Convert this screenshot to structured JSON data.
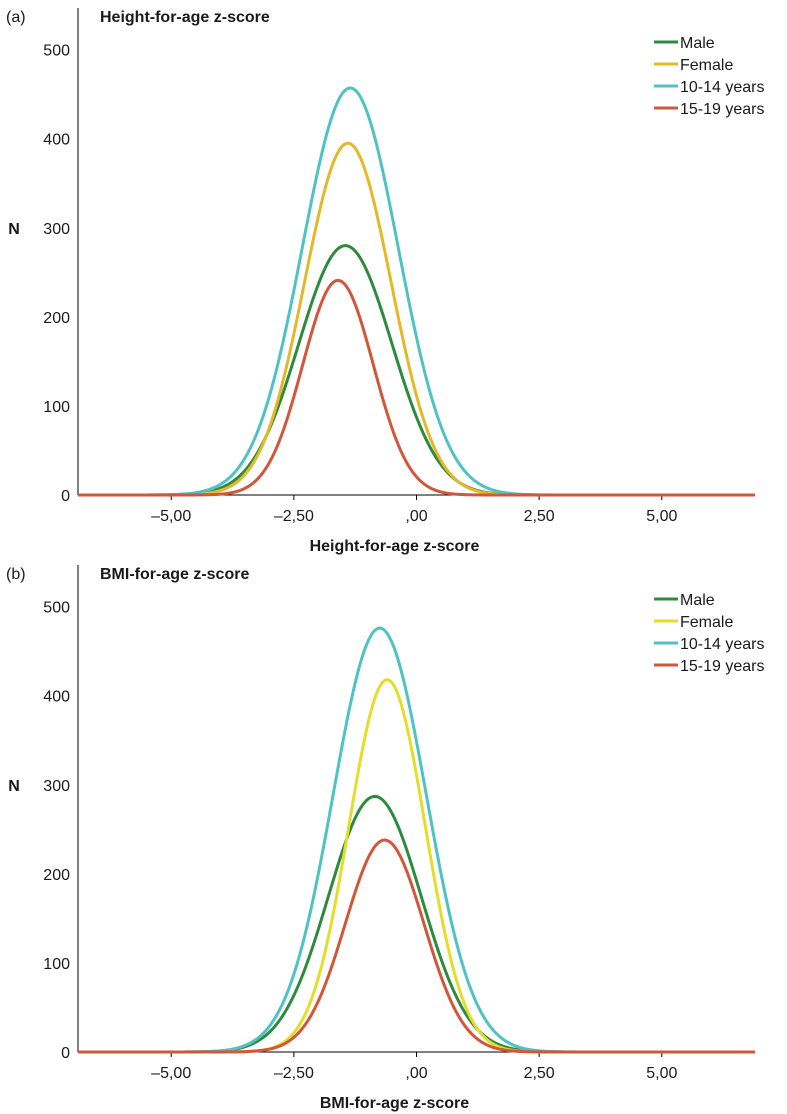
{
  "chart_data": [
    {
      "type": "line",
      "panel_label": "(a)",
      "title": "Height-for-age z-score",
      "xlabel": "Height-for-age z-score",
      "ylabel": "N",
      "xlim": [
        -6.9,
        6.9
      ],
      "ylim": [
        0,
        540
      ],
      "xticks": [
        -5,
        -2.5,
        0,
        2.5,
        5
      ],
      "xtick_labels": [
        "–5,00",
        "–2,50",
        ",00",
        "2,50",
        "5,00"
      ],
      "yticks": [
        0,
        100,
        200,
        300,
        400,
        500
      ],
      "ytick_labels": [
        "0",
        "100",
        "200",
        "300",
        "400",
        "500"
      ],
      "grid": false,
      "legend_position": "top-right",
      "series": [
        {
          "name": "Male",
          "color": "#2e8b3e",
          "peak": 280,
          "mean": -1.45,
          "sd": 0.95
        },
        {
          "name": "Female",
          "color": "#e3b92a",
          "peak": 395,
          "mean": -1.4,
          "sd": 0.88
        },
        {
          "name": "10-14 years",
          "color": "#4fc3c3",
          "peak": 457,
          "mean": -1.35,
          "sd": 0.98
        },
        {
          "name": "15-19 years",
          "color": "#d2573a",
          "peak": 241,
          "mean": -1.6,
          "sd": 0.72
        }
      ]
    },
    {
      "type": "line",
      "panel_label": "(b)",
      "title": "BMI-for-age z-score",
      "xlabel": "BMI-for-age z-score",
      "ylabel": "N",
      "xlim": [
        -6.9,
        6.9
      ],
      "ylim": [
        0,
        540
      ],
      "xticks": [
        -5,
        -2.5,
        0,
        2.5,
        5
      ],
      "xtick_labels": [
        "–5,00",
        "–2,50",
        ",00",
        "2,50",
        "5,00"
      ],
      "yticks": [
        0,
        100,
        200,
        300,
        400,
        500
      ],
      "ytick_labels": [
        "0",
        "100",
        "200",
        "300",
        "400",
        "500"
      ],
      "grid": false,
      "legend_position": "top-right",
      "series": [
        {
          "name": "Male",
          "color": "#2e8b3e",
          "peak": 287,
          "mean": -0.85,
          "sd": 0.95
        },
        {
          "name": "Female",
          "color": "#e3de2a",
          "peak": 418,
          "mean": -0.6,
          "sd": 0.78
        },
        {
          "name": "10-14 years",
          "color": "#4fc3c3",
          "peak": 476,
          "mean": -0.75,
          "sd": 0.95
        },
        {
          "name": "15-19 years",
          "color": "#d2573a",
          "peak": 238,
          "mean": -0.65,
          "sd": 0.8
        }
      ]
    }
  ]
}
